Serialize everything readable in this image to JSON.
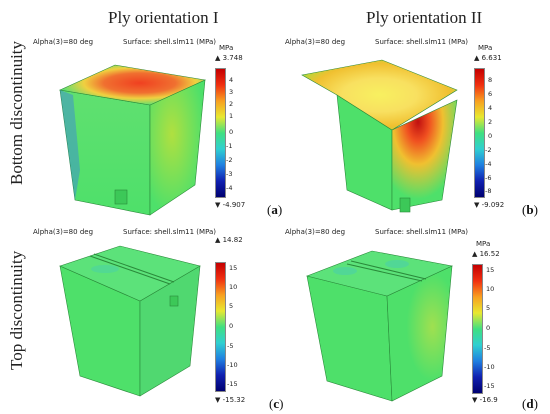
{
  "columns": [
    "Ply orientation I",
    "Ply orientation II"
  ],
  "rows": [
    "Bottom discontinuity",
    "Top discontinuity"
  ],
  "panels": [
    {
      "alpha": "Alpha(3)=80 deg",
      "surface": "Surface: shell.slm11 (MPa)",
      "unit": "MPa",
      "max": "▲ 3.748",
      "min": "▼ -4.907",
      "label": "a",
      "ticks": [
        "4",
        "3",
        "2",
        "1",
        "0",
        "-1",
        "-2",
        "-3",
        "-4"
      ]
    },
    {
      "alpha": "Alpha(3)=80 deg",
      "surface": "Surface: shell.slm11 (MPa)",
      "unit": "MPa",
      "max": "▲ 6.631",
      "min": "▼ -9.092",
      "label": "b",
      "ticks": [
        "8",
        "6",
        "4",
        "2",
        "0",
        "-2",
        "-4",
        "-6",
        "-8"
      ]
    },
    {
      "alpha": "Alpha(3)=80 deg",
      "surface": "Surface: shell.slm11 (MPa)",
      "unit": "MPa",
      "max": "▲ 14.82",
      "min": "▼ -15.32",
      "label": "c",
      "ticks": [
        "15",
        "10",
        "5",
        "0",
        "-5",
        "-10",
        "-15"
      ]
    },
    {
      "alpha": "Alpha(3)=80 deg",
      "surface": "Surface: shell.slm11 (MPa)",
      "unit": "MPa",
      "max": "▲ 16.52",
      "min": "▼ -16.9",
      "label": "d",
      "ticks": [
        "15",
        "10",
        "5",
        "0",
        "-5",
        "-10",
        "-15"
      ]
    }
  ],
  "colors": {
    "rainbow": [
      "#c40000",
      "#f03010",
      "#f8a020",
      "#e8e830",
      "#40e080",
      "#30d0d0",
      "#2080e0",
      "#1020b0",
      "#000070"
    ],
    "model_green": "#4ee06a"
  }
}
